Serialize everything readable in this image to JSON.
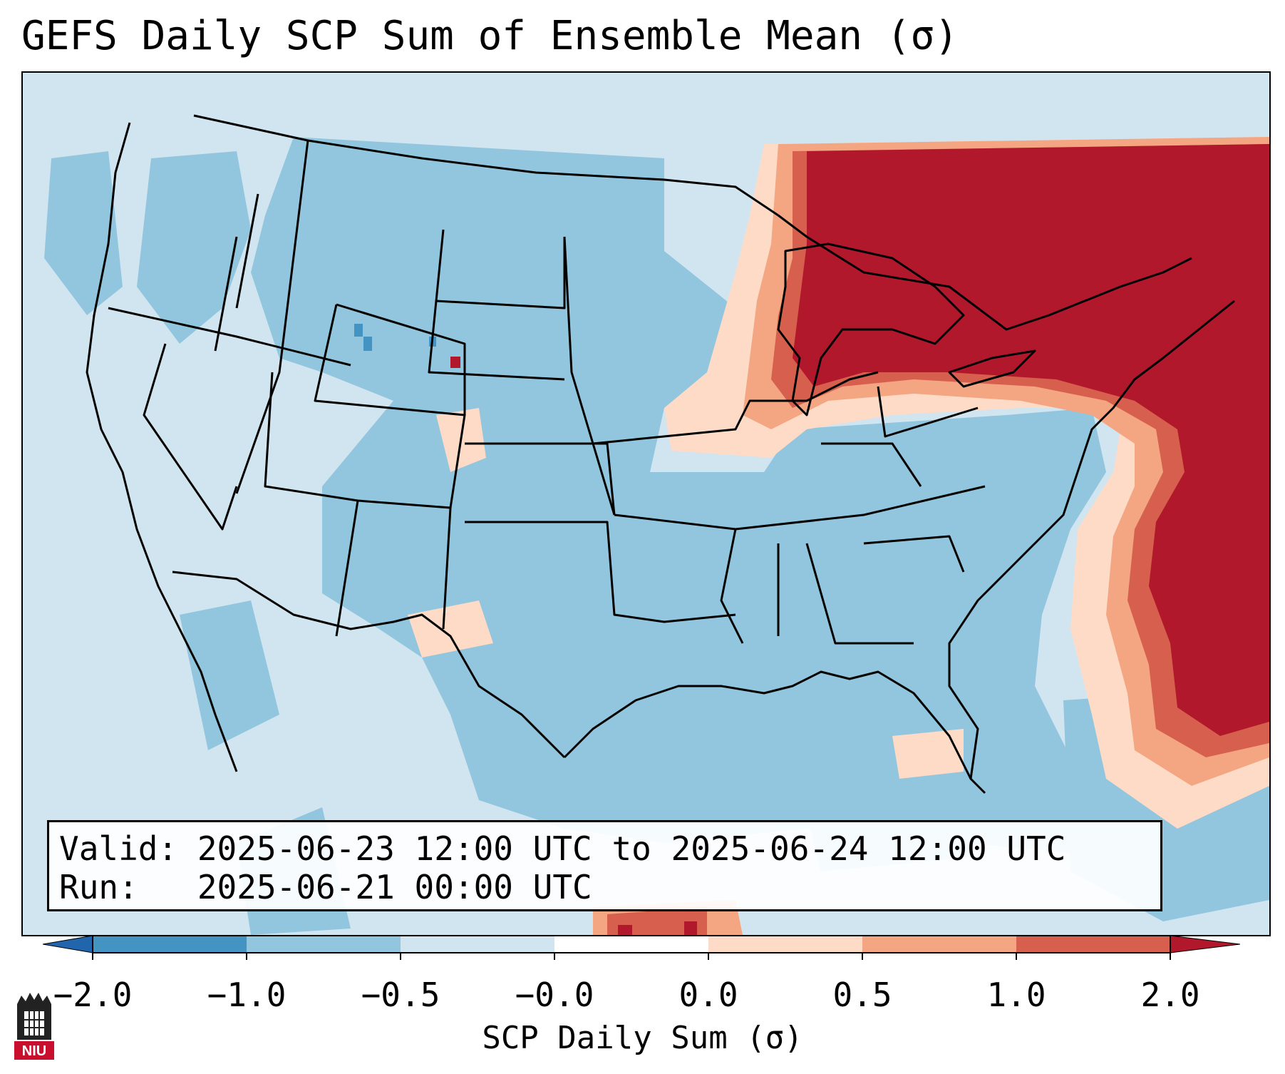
{
  "title": "GEFS Daily SCP Sum of Ensemble Mean (σ)",
  "info": {
    "valid": "Valid: 2025-06-23 12:00 UTC to 2025-06-24 12:00 UTC",
    "run": "Run:   2025-06-21 00:00 UTC"
  },
  "colorbar": {
    "label": "SCP Daily Sum (σ)",
    "ticks": [
      "−2.0",
      "−1.0",
      "−0.5",
      "−0.0",
      "0.0",
      "0.5",
      "1.0",
      "2.0"
    ],
    "colors": [
      "#2166ac",
      "#4393c3",
      "#92c5de",
      "#d1e5f0",
      "#ffffff",
      "#fddbc7",
      "#f4a582",
      "#d6604d",
      "#b2182b"
    ]
  },
  "legend_regions": {
    "background": "#d1e5f0",
    "minus_half": "#92c5de",
    "plus_half": "#fddbc7",
    "plus_one": "#f4a582",
    "plus_one_five": "#d6604d",
    "plus_two": "#b2182b"
  },
  "logo": {
    "text": "NIU"
  }
}
